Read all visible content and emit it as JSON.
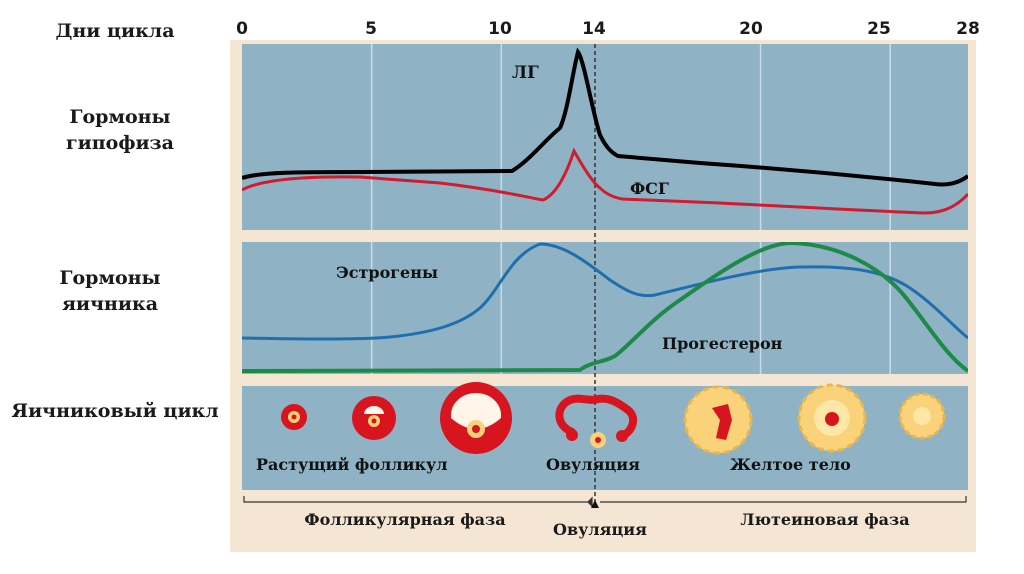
{
  "axis": {
    "label": "Дни цикла",
    "ticks": [
      "0",
      "5",
      "10",
      "14",
      "20",
      "25",
      "28"
    ],
    "tick_days": [
      0,
      5,
      10,
      14,
      20,
      25,
      28
    ]
  },
  "rows": {
    "pituitary": "Гормоны гипофиза",
    "ovarian": "Гормоны яичника",
    "ovarian_cycle": "Яичниковый цикл"
  },
  "curves": {
    "lh": "ЛГ",
    "fsh": "ФСГ",
    "estrogen": "Эстрогены",
    "progesterone": "Прогестерон"
  },
  "colors": {
    "panel": "#8fb3c4",
    "frame": "#f5e6d3",
    "lh": "#000000",
    "fsh": "#d01c2e",
    "estrogen": "#1f6fae",
    "progesterone": "#1e8a4a",
    "follicle": "#d8141e",
    "corpus": "#f9d27a"
  },
  "stages": {
    "growing": "Растущий фолликул",
    "ovulation": "Овуляция",
    "corpus": "Желтое тело"
  },
  "phases": {
    "follicular": "Фолликулярная фаза",
    "ovulation": "Овуляция",
    "luteal": "Лютеиновая фаза"
  }
}
